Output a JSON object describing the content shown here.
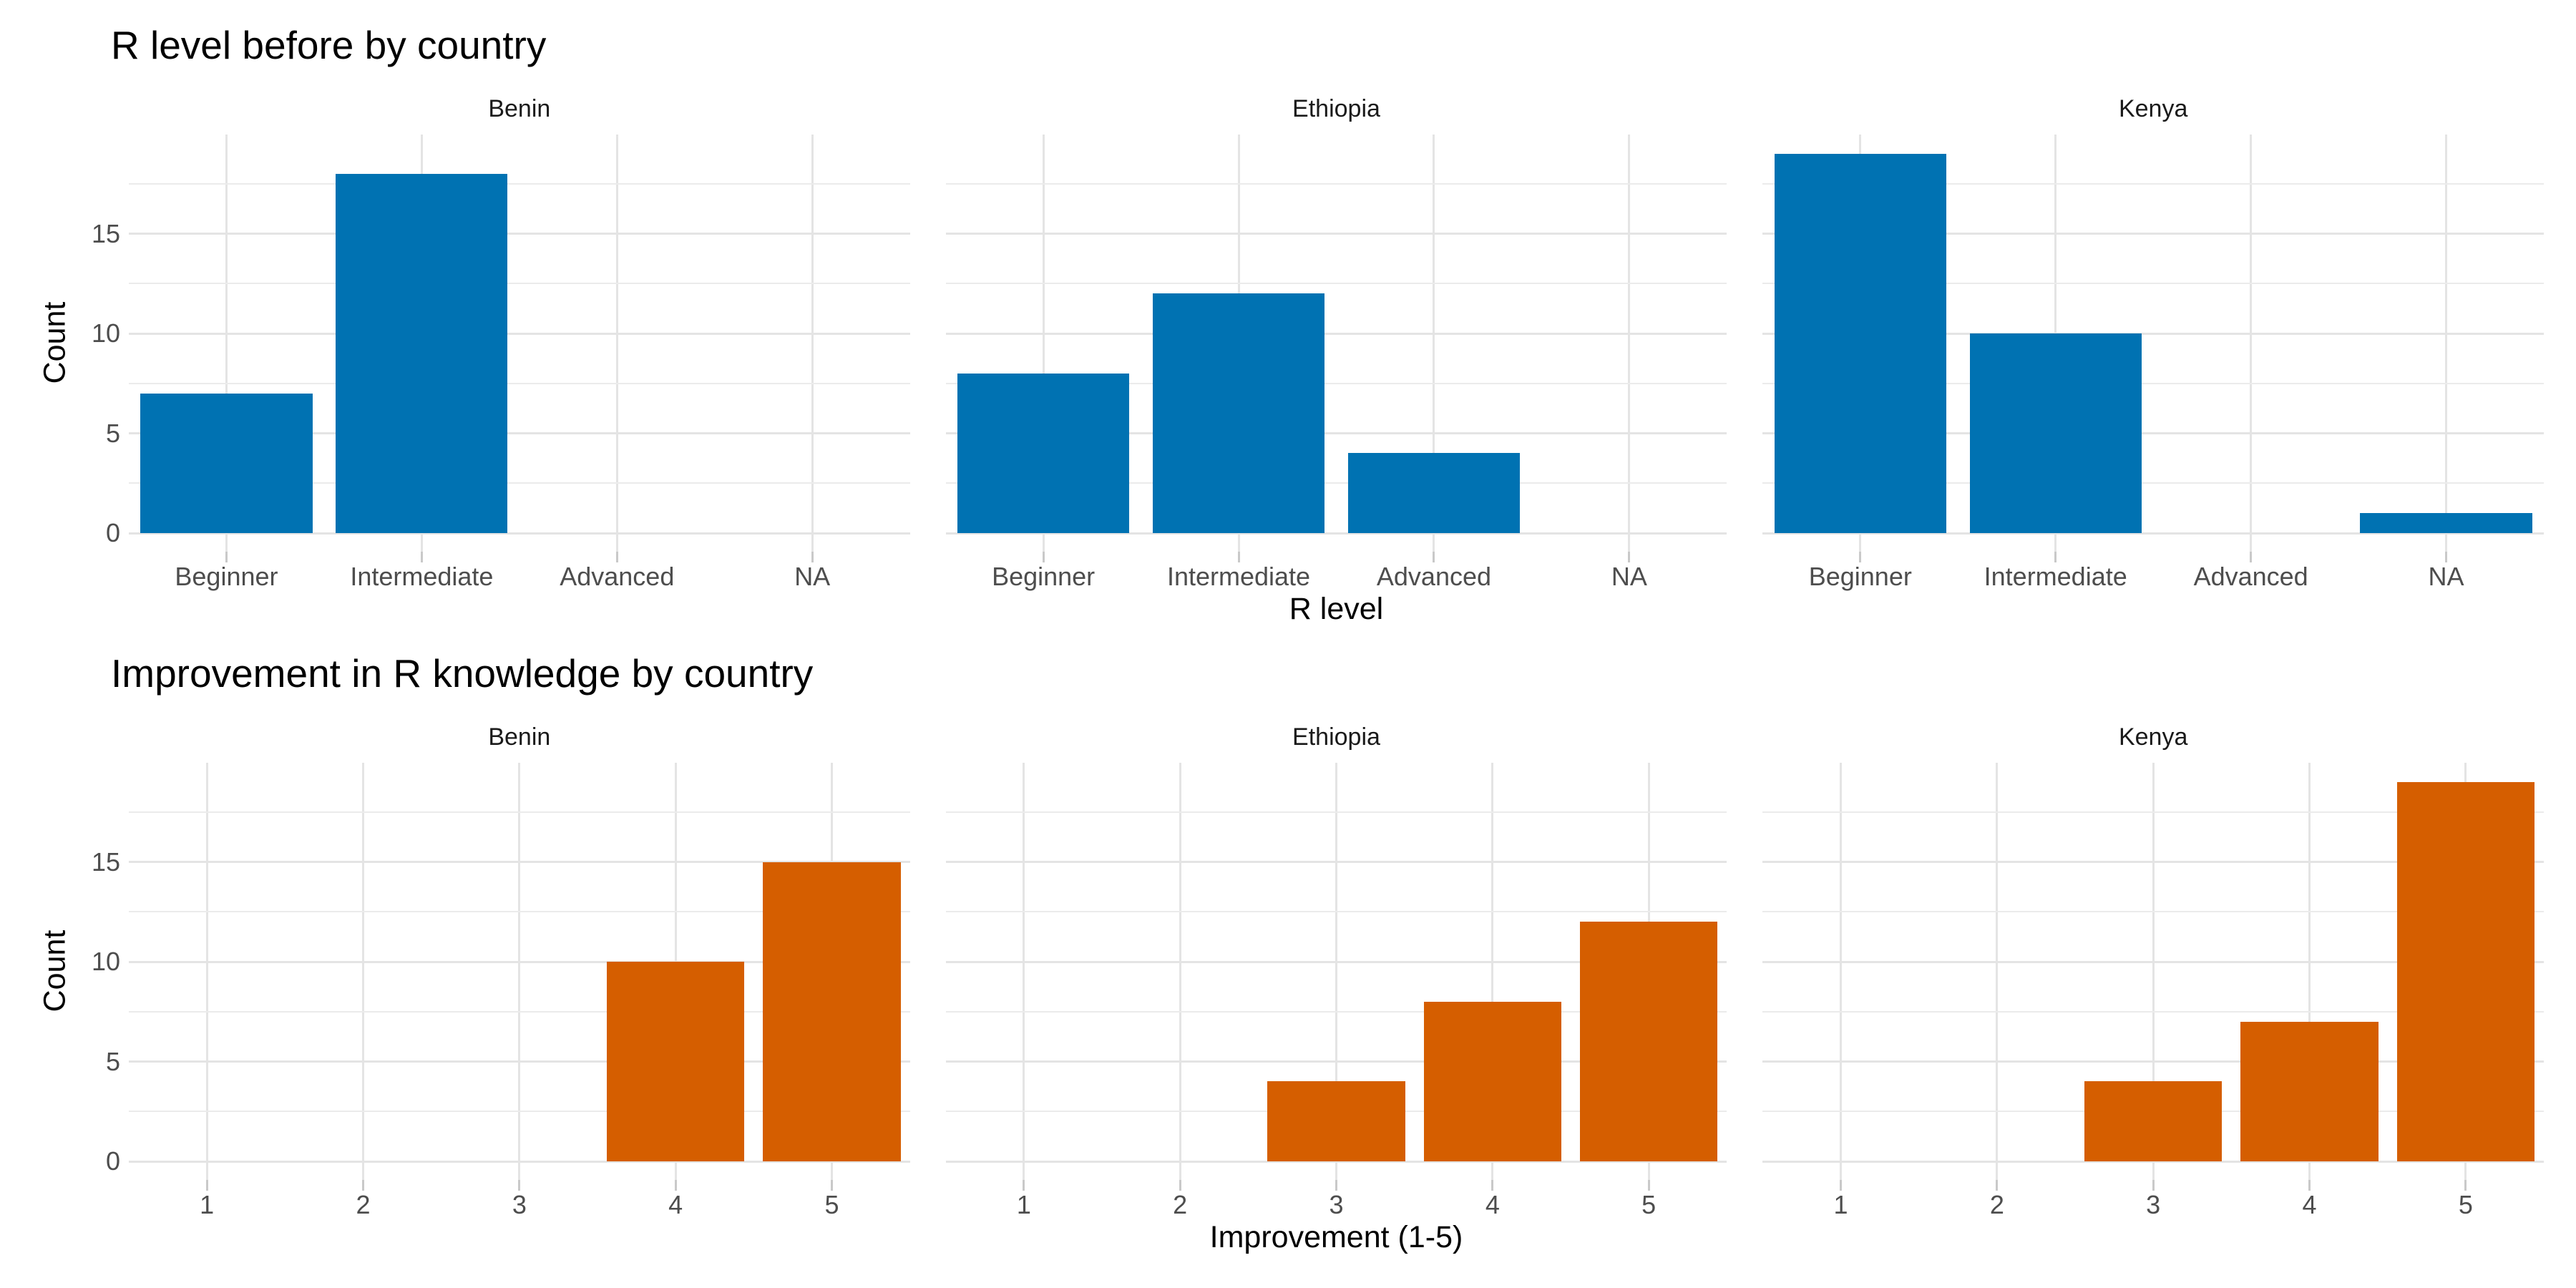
{
  "theme": {
    "background": "#FFFFFF",
    "grid_major_color": "#E4E4E4",
    "grid_minor_color": "#EBEBEB",
    "tick_mark_color": "#C9C9C9",
    "axis_text_color": "#4D4D4D",
    "strip_text_color": "#1A1A1A",
    "title_text_color": "#000000"
  },
  "chart_data": [
    {
      "type": "bar",
      "title": "R level before by country",
      "xlabel": "R level",
      "ylabel": "Count",
      "facets": [
        "Benin",
        "Ethiopia",
        "Kenya"
      ],
      "categories": [
        "Beginner",
        "Intermediate",
        "Advanced",
        "NA"
      ],
      "series": [
        {
          "name": "Benin",
          "values": [
            7,
            18,
            0,
            0
          ]
        },
        {
          "name": "Ethiopia",
          "values": [
            8,
            12,
            4,
            0
          ]
        },
        {
          "name": "Kenya",
          "values": [
            19,
            10,
            0,
            1
          ]
        }
      ],
      "y_ticks": [
        0,
        5,
        10,
        15
      ],
      "y_minor_gridlines": [
        2.5,
        7.5,
        12.5,
        17.5
      ],
      "ylim": [
        0,
        19.95
      ],
      "bar_color": "#0072B2",
      "grid": "major+minor",
      "legend": "none"
    },
    {
      "type": "bar",
      "title": "Improvement in R knowledge by country",
      "xlabel": "Improvement (1-5)",
      "ylabel": "Count",
      "facets": [
        "Benin",
        "Ethiopia",
        "Kenya"
      ],
      "categories": [
        "1",
        "2",
        "3",
        "4",
        "5"
      ],
      "series": [
        {
          "name": "Benin",
          "values": [
            0,
            0,
            0,
            10,
            15
          ]
        },
        {
          "name": "Ethiopia",
          "values": [
            0,
            0,
            4,
            8,
            12
          ]
        },
        {
          "name": "Kenya",
          "values": [
            0,
            0,
            4,
            7,
            19
          ]
        }
      ],
      "y_ticks": [
        0,
        5,
        10,
        15
      ],
      "y_minor_gridlines": [
        2.5,
        7.5,
        12.5,
        17.5
      ],
      "ylim": [
        0,
        19.95
      ],
      "bar_color": "#D55E00",
      "grid": "major+minor",
      "legend": "none"
    }
  ]
}
